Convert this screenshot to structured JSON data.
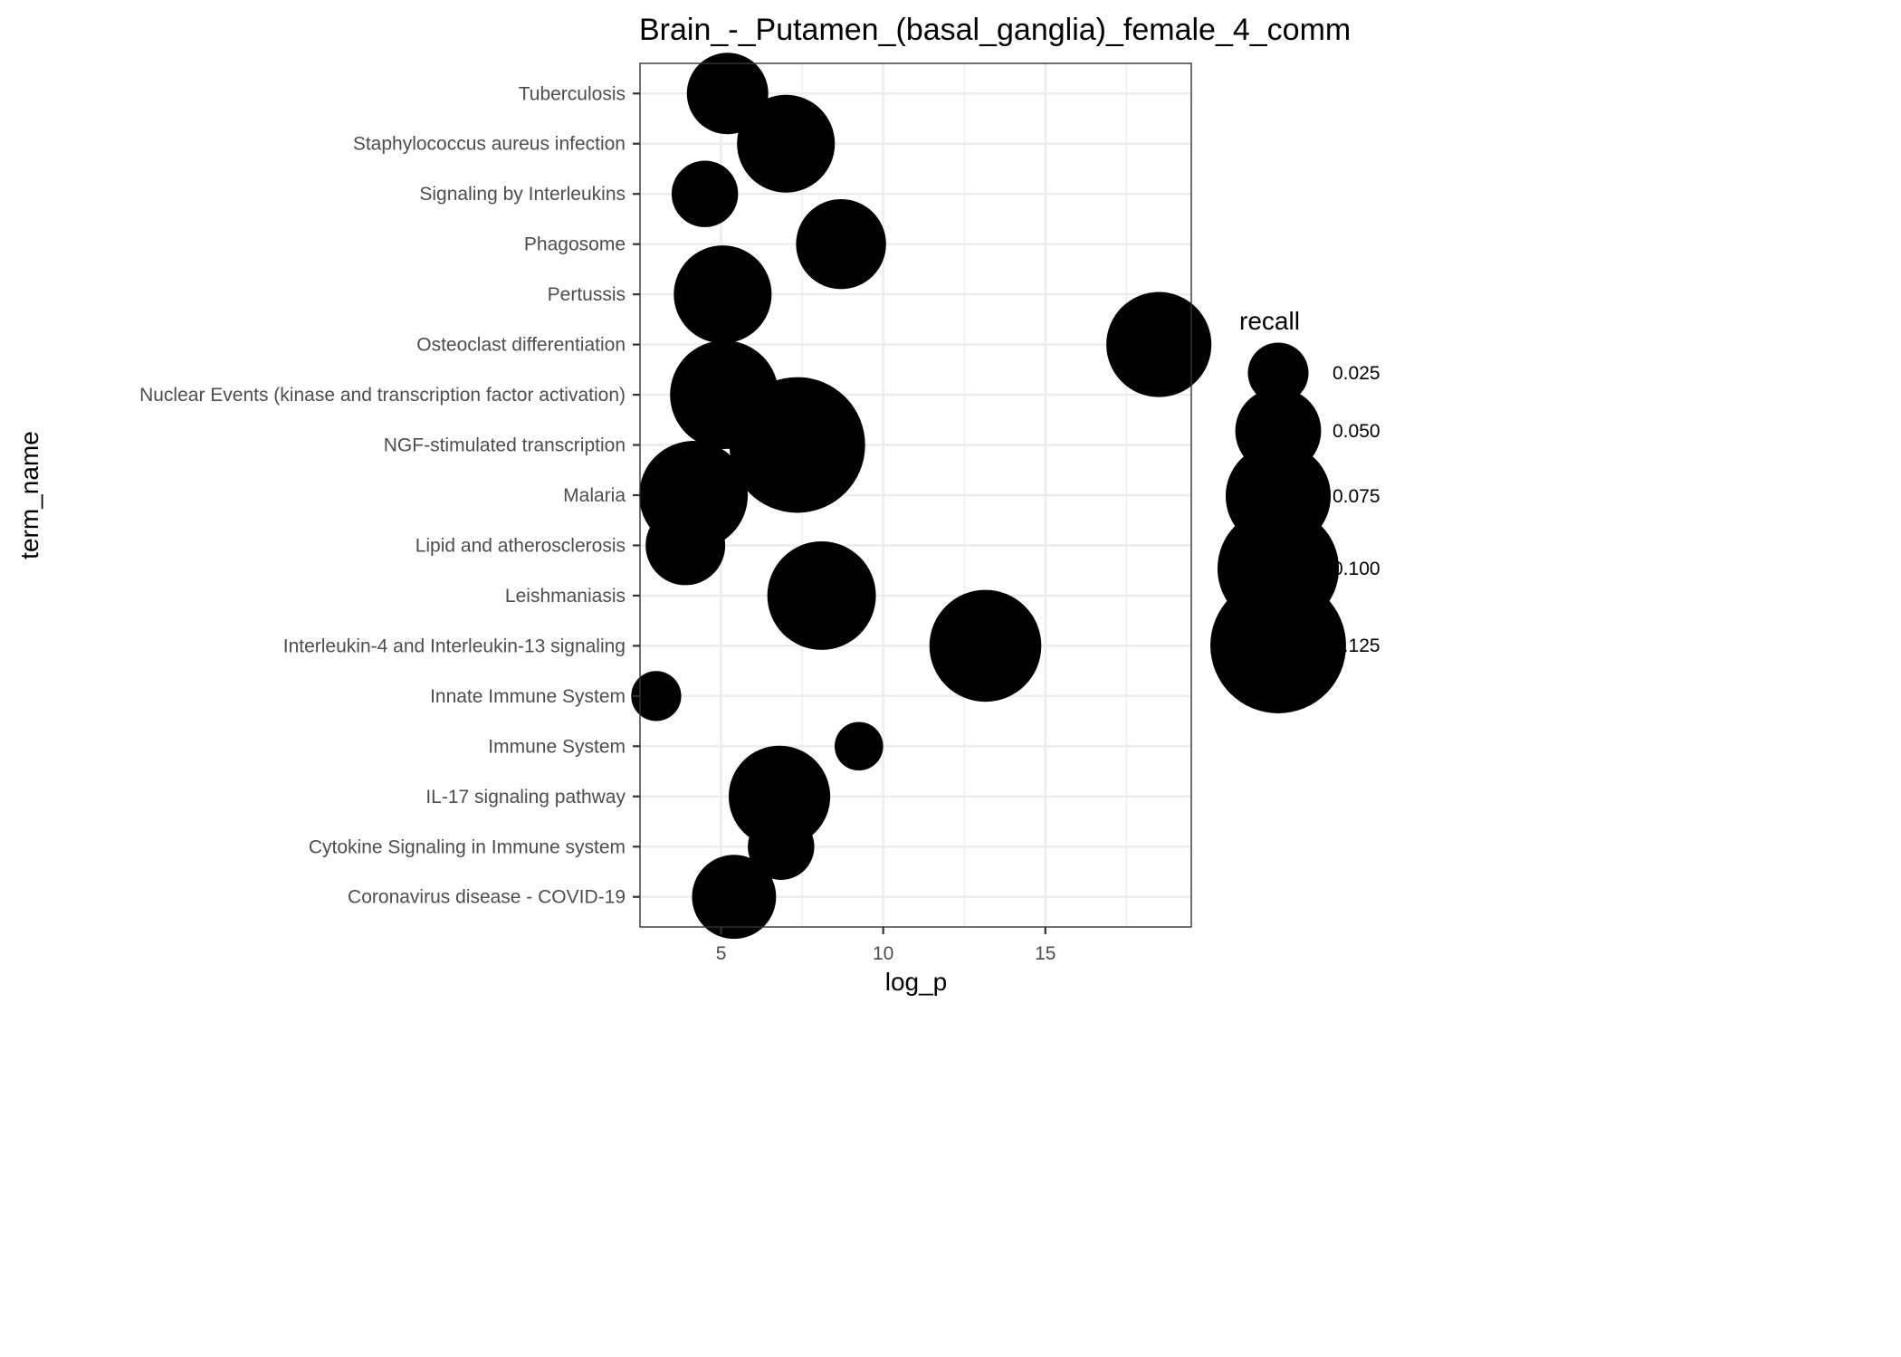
{
  "chart_data": {
    "type": "scatter",
    "title": "Brain_-_Putamen_(basal_ganglia)_female_4_comm",
    "xlabel": "log_p",
    "ylabel": "term_name",
    "xlim": [
      2.5,
      19.5
    ],
    "x_ticks": [
      5,
      10,
      15
    ],
    "x_tick_labels": [
      "5",
      "10",
      "15"
    ],
    "grid": true,
    "size_variable": "recall",
    "legend": {
      "title": "recall",
      "placement": "right",
      "entries": [
        {
          "label": "0.025",
          "value": 0.025
        },
        {
          "label": "0.050",
          "value": 0.05
        },
        {
          "label": "0.075",
          "value": 0.075
        },
        {
          "label": "0.100",
          "value": 0.1
        },
        {
          "label": "0.125",
          "value": 0.125
        }
      ]
    },
    "color": "#000000",
    "points": [
      {
        "term": "Tuberculosis",
        "log_p": 5.2,
        "recall": 0.045
      },
      {
        "term": "Staphylococcus aureus infection",
        "log_p": 7.0,
        "recall": 0.065
      },
      {
        "term": "Signaling by Interleukins",
        "log_p": 4.5,
        "recall": 0.03
      },
      {
        "term": "Phagosome",
        "log_p": 8.7,
        "recall": 0.055
      },
      {
        "term": "Pertussis",
        "log_p": 5.05,
        "recall": 0.065
      },
      {
        "term": "Osteoclast differentiation",
        "log_p": 18.5,
        "recall": 0.075
      },
      {
        "term": "Nuclear Events (kinase and transcription factor activation)",
        "log_p": 5.1,
        "recall": 0.08
      },
      {
        "term": "NGF-stimulated transcription",
        "log_p": 7.35,
        "recall": 0.125
      },
      {
        "term": "Malaria",
        "log_p": 4.15,
        "recall": 0.08
      },
      {
        "term": "Lipid and atherosclerosis",
        "log_p": 3.9,
        "recall": 0.043
      },
      {
        "term": "Leishmaniasis",
        "log_p": 8.1,
        "recall": 0.08
      },
      {
        "term": "Interleukin-4 and Interleukin-13 signaling",
        "log_p": 13.15,
        "recall": 0.085
      },
      {
        "term": "Innate Immune System",
        "log_p": 3.0,
        "recall": 0.017
      },
      {
        "term": "Immune System",
        "log_p": 9.25,
        "recall": 0.016
      },
      {
        "term": "IL-17 signaling pathway",
        "log_p": 6.8,
        "recall": 0.07
      },
      {
        "term": "Cytokine Signaling in Immune system",
        "log_p": 6.85,
        "recall": 0.03
      },
      {
        "term": "Coronavirus disease - COVID-19",
        "log_p": 5.4,
        "recall": 0.048
      }
    ]
  }
}
